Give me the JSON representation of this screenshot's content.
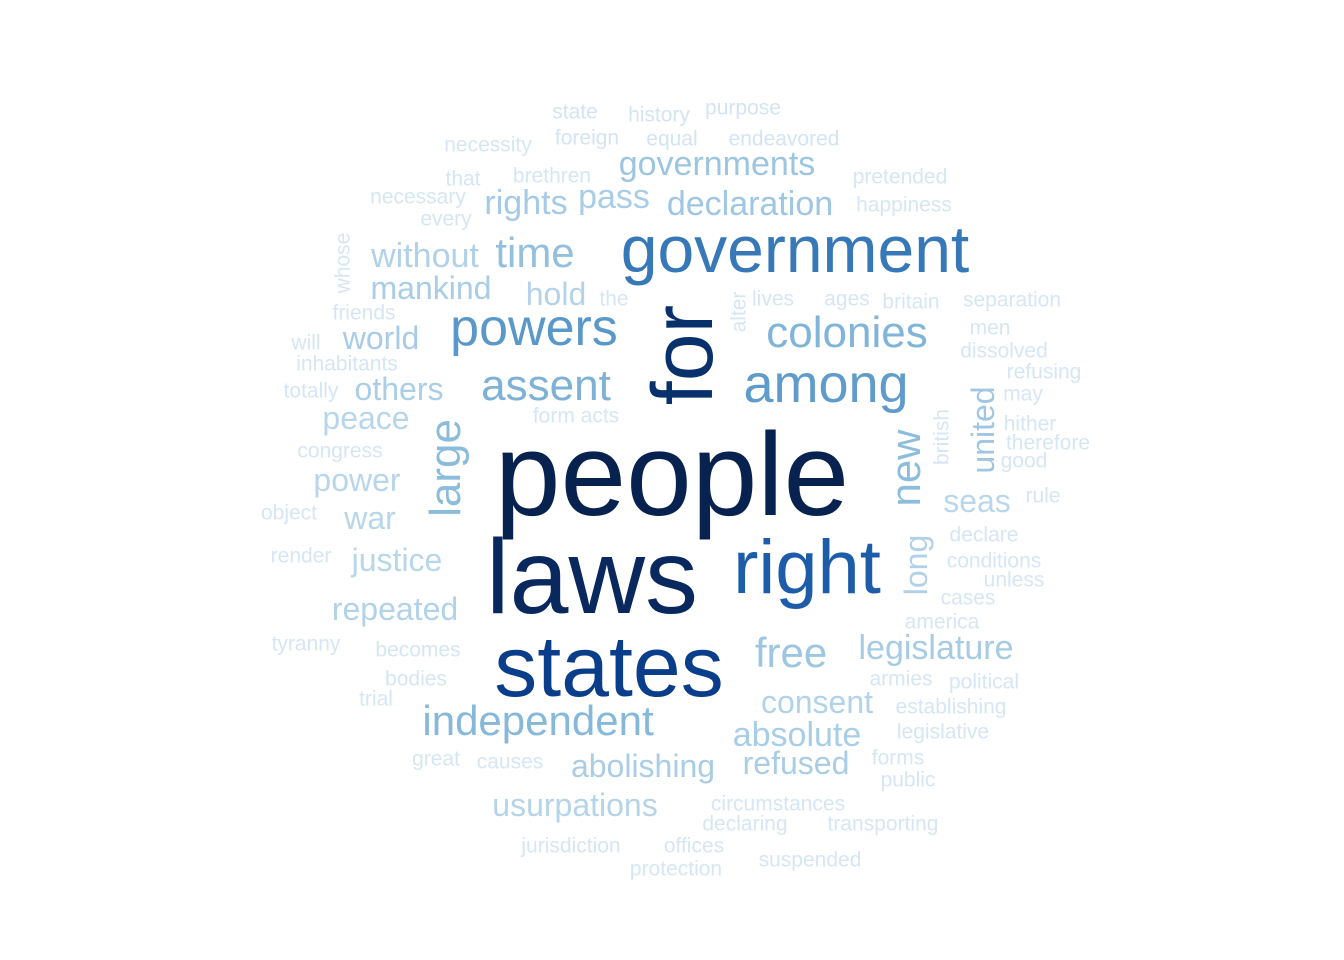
{
  "words": [
    {
      "text": "people",
      "weight": 1.0
    },
    {
      "text": "laws",
      "weight": 0.97
    },
    {
      "text": "states",
      "weight": 0.9
    },
    {
      "text": "for",
      "weight": 0.88
    },
    {
      "text": "right",
      "weight": 0.8
    },
    {
      "text": "government",
      "weight": 0.72
    },
    {
      "text": "among",
      "weight": 0.62
    },
    {
      "text": "powers",
      "weight": 0.6
    },
    {
      "text": "colonies",
      "weight": 0.55
    },
    {
      "text": "assent",
      "weight": 0.5
    },
    {
      "text": "large",
      "weight": 0.48
    },
    {
      "text": "new",
      "weight": 0.47
    },
    {
      "text": "independent",
      "weight": 0.46
    },
    {
      "text": "time",
      "weight": 0.45
    },
    {
      "text": "free",
      "weight": 0.43
    },
    {
      "text": "declaration",
      "weight": 0.42
    },
    {
      "text": "governments",
      "weight": 0.42
    },
    {
      "text": "legislature",
      "weight": 0.4
    },
    {
      "text": "united",
      "weight": 0.4
    },
    {
      "text": "absolute",
      "weight": 0.39
    },
    {
      "text": "rights",
      "weight": 0.38
    },
    {
      "text": "pass",
      "weight": 0.38
    },
    {
      "text": "without",
      "weight": 0.37
    },
    {
      "text": "mankind",
      "weight": 0.37
    },
    {
      "text": "hold",
      "weight": 0.36
    },
    {
      "text": "world",
      "weight": 0.36
    },
    {
      "text": "others",
      "weight": 0.35
    },
    {
      "text": "consent",
      "weight": 0.35
    },
    {
      "text": "refused",
      "weight": 0.34
    },
    {
      "text": "abolishing",
      "weight": 0.34
    },
    {
      "text": "usurpations",
      "weight": 0.34
    },
    {
      "text": "repeated",
      "weight": 0.33
    },
    {
      "text": "long",
      "weight": 0.33
    },
    {
      "text": "peace",
      "weight": 0.32
    },
    {
      "text": "power",
      "weight": 0.32
    },
    {
      "text": "seas",
      "weight": 0.31
    },
    {
      "text": "war",
      "weight": 0.31
    },
    {
      "text": "justice",
      "weight": 0.3
    },
    {
      "text": "form acts",
      "weight": 0.2
    },
    {
      "text": "state",
      "weight": 0.1
    },
    {
      "text": "history",
      "weight": 0.1
    },
    {
      "text": "purpose",
      "weight": 0.1
    },
    {
      "text": "necessity",
      "weight": 0.1
    },
    {
      "text": "foreign",
      "weight": 0.1
    },
    {
      "text": "equal",
      "weight": 0.1
    },
    {
      "text": "endeavored",
      "weight": 0.1
    },
    {
      "text": "that",
      "weight": 0.1
    },
    {
      "text": "brethren",
      "weight": 0.1
    },
    {
      "text": "pretended",
      "weight": 0.1
    },
    {
      "text": "necessary",
      "weight": 0.1
    },
    {
      "text": "every",
      "weight": 0.1
    },
    {
      "text": "happiness",
      "weight": 0.1
    },
    {
      "text": "whose",
      "weight": 0.1
    },
    {
      "text": "friends",
      "weight": 0.1
    },
    {
      "text": "the",
      "weight": 0.1
    },
    {
      "text": "alter",
      "weight": 0.1
    },
    {
      "text": "lives",
      "weight": 0.1
    },
    {
      "text": "ages",
      "weight": 0.1
    },
    {
      "text": "britain",
      "weight": 0.1
    },
    {
      "text": "separation",
      "weight": 0.1
    },
    {
      "text": "will",
      "weight": 0.1
    },
    {
      "text": "men",
      "weight": 0.1
    },
    {
      "text": "inhabitants",
      "weight": 0.1
    },
    {
      "text": "dissolved",
      "weight": 0.1
    },
    {
      "text": "totally",
      "weight": 0.1
    },
    {
      "text": "refusing",
      "weight": 0.1
    },
    {
      "text": "may",
      "weight": 0.1
    },
    {
      "text": "british",
      "weight": 0.1
    },
    {
      "text": "hither",
      "weight": 0.1
    },
    {
      "text": "therefore",
      "weight": 0.1
    },
    {
      "text": "congress",
      "weight": 0.1
    },
    {
      "text": "good",
      "weight": 0.1
    },
    {
      "text": "rule",
      "weight": 0.1
    },
    {
      "text": "object",
      "weight": 0.1
    },
    {
      "text": "declare",
      "weight": 0.1
    },
    {
      "text": "render",
      "weight": 0.1
    },
    {
      "text": "conditions",
      "weight": 0.1
    },
    {
      "text": "unless",
      "weight": 0.1
    },
    {
      "text": "cases",
      "weight": 0.1
    },
    {
      "text": "america",
      "weight": 0.1
    },
    {
      "text": "tyranny",
      "weight": 0.1
    },
    {
      "text": "becomes",
      "weight": 0.1
    },
    {
      "text": "bodies",
      "weight": 0.1
    },
    {
      "text": "armies",
      "weight": 0.1
    },
    {
      "text": "political",
      "weight": 0.1
    },
    {
      "text": "trial",
      "weight": 0.1
    },
    {
      "text": "establishing",
      "weight": 0.1
    },
    {
      "text": "legislative",
      "weight": 0.1
    },
    {
      "text": "great",
      "weight": 0.1
    },
    {
      "text": "causes",
      "weight": 0.1
    },
    {
      "text": "forms",
      "weight": 0.1
    },
    {
      "text": "public",
      "weight": 0.1
    },
    {
      "text": "circumstances",
      "weight": 0.1
    },
    {
      "text": "declaring",
      "weight": 0.1
    },
    {
      "text": "transporting",
      "weight": 0.1
    },
    {
      "text": "jurisdiction",
      "weight": 0.1
    },
    {
      "text": "offices",
      "weight": 0.1
    },
    {
      "text": "protection",
      "weight": 0.1
    },
    {
      "text": "suspended",
      "weight": 0.1
    }
  ]
}
